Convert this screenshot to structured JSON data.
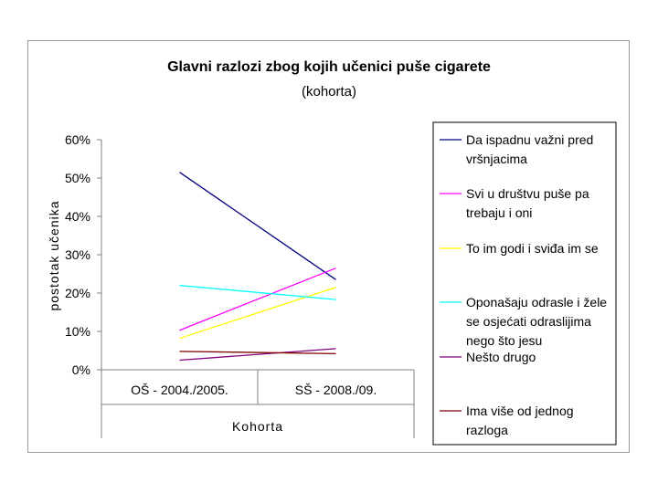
{
  "chart_data": {
    "type": "line",
    "title": "Glavni razlozi zbog kojih učenici puše cigarete",
    "subtitle": "(kohorta)",
    "xlabel": "Kohorta",
    "ylabel": "postotak učenika",
    "categories": [
      "OŠ - 2004./2005.",
      "SŠ - 2008./09."
    ],
    "ylim": [
      0,
      60
    ],
    "yticks": [
      "0%",
      "10%",
      "20%",
      "30%",
      "40%",
      "50%",
      "60%"
    ],
    "grid": false,
    "legend_position": "right",
    "series": [
      {
        "name": "Da ispadnu važni pred vršnjacima",
        "color": "#000080",
        "values": [
          51.5,
          23.5
        ]
      },
      {
        "name": "Svi u društvu puše pa trebaju i oni",
        "color": "#ff00ff",
        "values": [
          10.3,
          26.5
        ]
      },
      {
        "name": "To im godi i sviđa im se",
        "color": "#ffff00",
        "values": [
          8.2,
          21.5
        ]
      },
      {
        "name": "Oponašaju odrasle i žele se osjećati odraslijima nego što jesu",
        "color": "#00ffff",
        "values": [
          22.0,
          18.3
        ]
      },
      {
        "name": "Nešto drugo",
        "color": "#800080",
        "values": [
          2.5,
          5.5
        ]
      },
      {
        "name": "Ima više od jednog razloga",
        "color": "#800000",
        "values": [
          4.8,
          4.2
        ]
      }
    ]
  }
}
